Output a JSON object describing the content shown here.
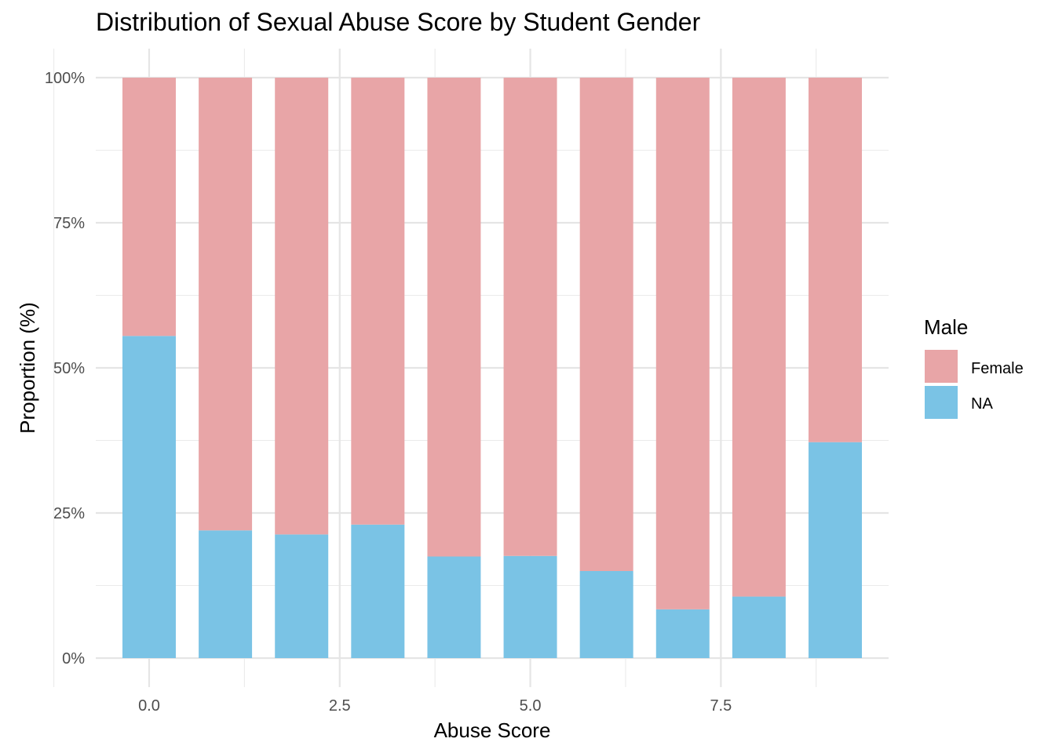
{
  "chart_data": {
    "type": "bar",
    "stacked": true,
    "normalized": true,
    "title": "Distribution of Sexual Abuse Score by Student Gender",
    "xlabel": "Abuse Score",
    "ylabel": "Proportion (%)",
    "x": [
      0,
      1,
      2,
      3,
      4,
      5,
      6,
      7,
      8,
      9
    ],
    "series": [
      {
        "name": "Female",
        "color": "#E8A5A7",
        "values": [
          44.5,
          78.0,
          78.7,
          77.0,
          82.5,
          82.4,
          85.0,
          91.6,
          89.4,
          62.8
        ]
      },
      {
        "name": "NA",
        "color": "#7AC3E5",
        "values": [
          55.5,
          22.0,
          21.3,
          23.0,
          17.5,
          17.6,
          15.0,
          8.4,
          10.6,
          37.2
        ]
      }
    ],
    "xlim": [
      -0.7,
      9.7
    ],
    "ylim": [
      0,
      100
    ],
    "x_ticks": [
      0,
      2.5,
      5,
      7.5
    ],
    "x_tick_labels": [
      "0.0",
      "2.5",
      "5.0",
      "7.5"
    ],
    "y_ticks": [
      0,
      25,
      50,
      75,
      100
    ],
    "y_tick_labels": [
      "0%",
      "25%",
      "50%",
      "75%",
      "100%"
    ],
    "grid": true,
    "legend": {
      "title": "Male",
      "position": "right",
      "entries": [
        "Female",
        "NA"
      ]
    }
  }
}
